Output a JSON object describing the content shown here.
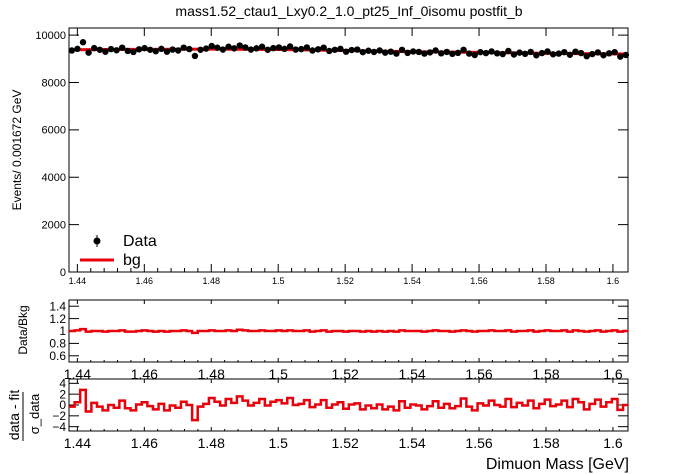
{
  "title": "mass1.52_ctau1_Lxy0.2_1.0_pt25_Inf_0isomu   postfit_b",
  "xlabel": "Dimuon Mass [GeV]",
  "colors": {
    "data": "#000000",
    "fit": "#e8000b",
    "frame": "#000000",
    "background": "#ffffff"
  },
  "chart_data": [
    {
      "type": "scatter",
      "panel": "main",
      "ylabel": "Events/ 0.001672 GeV",
      "xlim": [
        1.4375,
        1.6045
      ],
      "ylim": [
        0,
        10300
      ],
      "xticks": [
        1.44,
        1.46,
        1.48,
        1.5,
        1.52,
        1.54,
        1.56,
        1.58,
        1.6
      ],
      "xtick_labels": [
        "1.44",
        "1.46",
        "1.48",
        "1.5",
        "1.52",
        "1.54",
        "1.56",
        "1.58",
        "1.6"
      ],
      "yticks": [
        0,
        2000,
        4000,
        6000,
        8000,
        10000
      ],
      "ytick_labels": [
        "0",
        "2000",
        "4000",
        "6000",
        "8000",
        "10000"
      ],
      "legend_position": "bottom-left",
      "legend": [
        {
          "label": "Data",
          "marker": "point-with-error"
        },
        {
          "label": "bg",
          "marker": "line"
        }
      ],
      "series": [
        {
          "name": "Data",
          "x_start": 1.43834,
          "x_step": 0.001672,
          "values": [
            9350,
            9420,
            9700,
            9260,
            9450,
            9380,
            9300,
            9410,
            9360,
            9470,
            9330,
            9290,
            9400,
            9450,
            9380,
            9320,
            9420,
            9300,
            9390,
            9350,
            9470,
            9410,
            9120,
            9380,
            9430,
            9540,
            9470,
            9390,
            9510,
            9440,
            9560,
            9480,
            9390,
            9440,
            9510,
            9380,
            9450,
            9480,
            9420,
            9520,
            9390,
            9410,
            9480,
            9350,
            9400,
            9470,
            9330,
            9380,
            9420,
            9300,
            9370,
            9390,
            9280,
            9340,
            9290,
            9350,
            9260,
            9300,
            9220,
            9380,
            9250,
            9310,
            9290,
            9220,
            9270,
            9350,
            9230,
            9290,
            9210,
            9250,
            9380,
            9220,
            9160,
            9280,
            9240,
            9310,
            9230,
            9200,
            9330,
            9180,
            9260,
            9210,
            9290,
            9150,
            9240,
            9310,
            9190,
            9220,
            9280,
            9170,
            9300,
            9240,
            9110,
            9200,
            9270,
            9150,
            9230,
            9280,
            9090,
            9160
          ]
        },
        {
          "name": "bg",
          "x": [
            1.4375,
            1.46,
            1.48,
            1.5,
            1.52,
            1.54,
            1.56,
            1.58,
            1.6045
          ],
          "values": [
            9380,
            9400,
            9410,
            9390,
            9350,
            9300,
            9270,
            9230,
            9200
          ]
        }
      ]
    },
    {
      "type": "line",
      "panel": "ratio",
      "ylabel": "Data/Bkg",
      "xlim": [
        1.4375,
        1.6045
      ],
      "ylim": [
        0.5,
        1.5
      ],
      "xticks": [
        1.44,
        1.46,
        1.48,
        1.5,
        1.52,
        1.54,
        1.56,
        1.58,
        1.6
      ],
      "xtick_labels": [
        "1.44",
        "1.46",
        "1.48",
        "1.5",
        "1.52",
        "1.54",
        "1.56",
        "1.58",
        "1.6"
      ],
      "yticks": [
        0.6,
        0.8,
        1,
        1.2,
        1.4
      ],
      "ytick_labels": [
        "0.6",
        "0.8",
        "1",
        "1.2",
        "1.4"
      ],
      "x_start": 1.4375,
      "x_step": 0.001672,
      "values": [
        1.0,
        1.01,
        1.03,
        0.99,
        1.0,
        1.0,
        0.99,
        1.0,
        1.0,
        1.01,
        0.99,
        0.99,
        1.0,
        1.01,
        1.0,
        0.99,
        1.0,
        0.99,
        1.0,
        1.0,
        1.01,
        1.0,
        0.97,
        1.0,
        1.0,
        1.01,
        1.0,
        1.0,
        1.01,
        1.0,
        1.02,
        1.01,
        1.0,
        1.0,
        1.01,
        1.0,
        1.0,
        1.01,
        1.0,
        1.01,
        1.0,
        1.0,
        1.01,
        0.99,
        1.0,
        1.01,
        0.99,
        1.0,
        1.0,
        0.99,
        1.0,
        1.0,
        0.99,
        1.0,
        0.99,
        1.0,
        0.99,
        1.0,
        0.99,
        1.01,
        1.0,
        1.0,
        1.0,
        0.99,
        1.0,
        1.01,
        1.0,
        1.0,
        0.99,
        1.0,
        1.01,
        1.0,
        0.99,
        1.0,
        1.0,
        1.01,
        1.0,
        1.0,
        1.01,
        0.99,
        1.0,
        1.0,
        1.01,
        0.99,
        1.0,
        1.01,
        1.0,
        1.0,
        1.01,
        0.99,
        1.01,
        1.0,
        0.99,
        1.0,
        1.01,
        0.99,
        1.0,
        1.01,
        0.99,
        1.0
      ]
    },
    {
      "type": "line",
      "panel": "pull",
      "ylabel": "data - fit",
      "ylabel_sub": "σ_data",
      "xlim": [
        1.4375,
        1.6045
      ],
      "ylim": [
        -4.8,
        4.8
      ],
      "xticks": [
        1.44,
        1.46,
        1.48,
        1.5,
        1.52,
        1.54,
        1.56,
        1.58,
        1.6
      ],
      "xtick_labels": [
        "1.44",
        "1.46",
        "1.48",
        "1.5",
        "1.52",
        "1.54",
        "1.56",
        "1.58",
        "1.6"
      ],
      "yticks": [
        -4,
        -2,
        0,
        2,
        4
      ],
      "ytick_labels": [
        "−4",
        "−2",
        "0",
        "2",
        "4"
      ],
      "x_start": 1.4375,
      "x_step": 0.001672,
      "values": [
        -0.3,
        0.5,
        2.8,
        -1.2,
        0.4,
        -0.3,
        -1.0,
        0.0,
        -0.5,
        0.8,
        -0.6,
        -1.0,
        0.1,
        0.5,
        -0.2,
        -0.8,
        0.2,
        -1.0,
        -0.1,
        -0.5,
        0.6,
        0.0,
        -2.8,
        -0.3,
        0.2,
        1.3,
        0.6,
        -0.1,
        1.1,
        0.4,
        1.6,
        0.8,
        -0.1,
        0.4,
        1.1,
        -0.1,
        0.6,
        0.9,
        0.3,
        1.3,
        0.0,
        0.2,
        0.9,
        -0.4,
        0.1,
        0.9,
        -0.5,
        0.1,
        0.5,
        -0.7,
        0.1,
        0.3,
        -0.8,
        -0.1,
        -0.6,
        0.1,
        -0.8,
        -0.3,
        -1.0,
        0.7,
        -0.5,
        0.1,
        -0.1,
        -0.8,
        -0.2,
        0.7,
        -0.5,
        0.2,
        -0.6,
        -0.2,
        1.2,
        -0.3,
        -1.0,
        0.3,
        -0.1,
        0.8,
        0.0,
        -0.3,
        1.1,
        -0.4,
        0.4,
        -0.1,
        0.8,
        -0.6,
        0.2,
        1.0,
        -0.2,
        0.1,
        0.8,
        -0.4,
        1.1,
        0.5,
        -0.8,
        0.2,
        1.0,
        -0.3,
        0.5,
        1.1,
        -0.9,
        0.0
      ]
    }
  ]
}
